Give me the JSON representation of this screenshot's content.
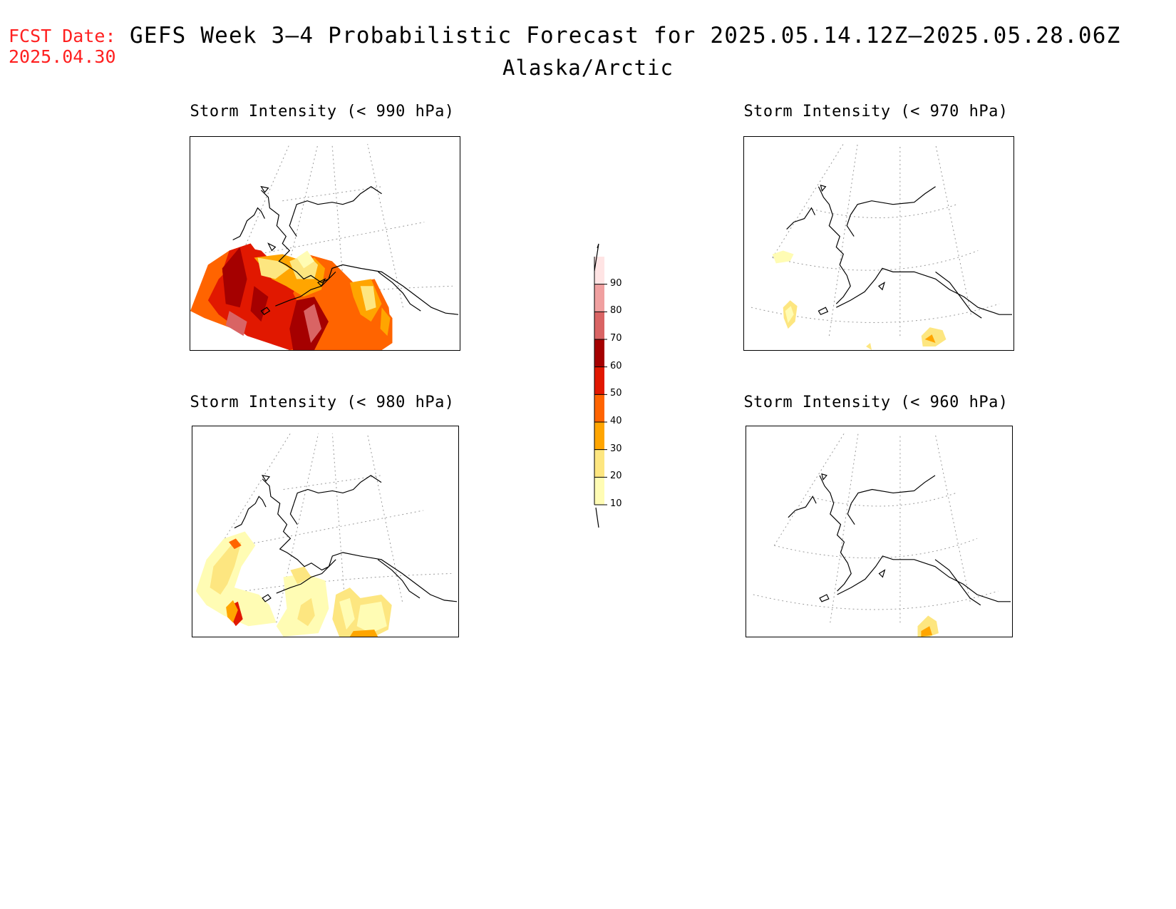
{
  "header": {
    "fcst_label": "FCST Date:",
    "fcst_date": "2025.04.30",
    "title": "GEFS Week 3–4 Probabilistic Forecast for 2025.05.14.12Z–2025.05.28.06Z",
    "region": "Alaska/Arctic"
  },
  "panels": [
    {
      "title": "Storm Intensity (< 990 hPa)"
    },
    {
      "title": "Storm Intensity (< 970 hPa)"
    },
    {
      "title": "Storm Intensity (< 980 hPa)"
    },
    {
      "title": "Storm Intensity (< 960 hPa)"
    }
  ],
  "colorbar": {
    "levels": [
      "10",
      "20",
      "30",
      "40",
      "50",
      "60",
      "70",
      "80",
      "90"
    ],
    "colors": [
      "#fffcb4",
      "#fde680",
      "#ffa500",
      "#ff6400",
      "#e11800",
      "#a50000",
      "#d96464",
      "#f0a0a0",
      "#ffe4e4"
    ]
  }
}
